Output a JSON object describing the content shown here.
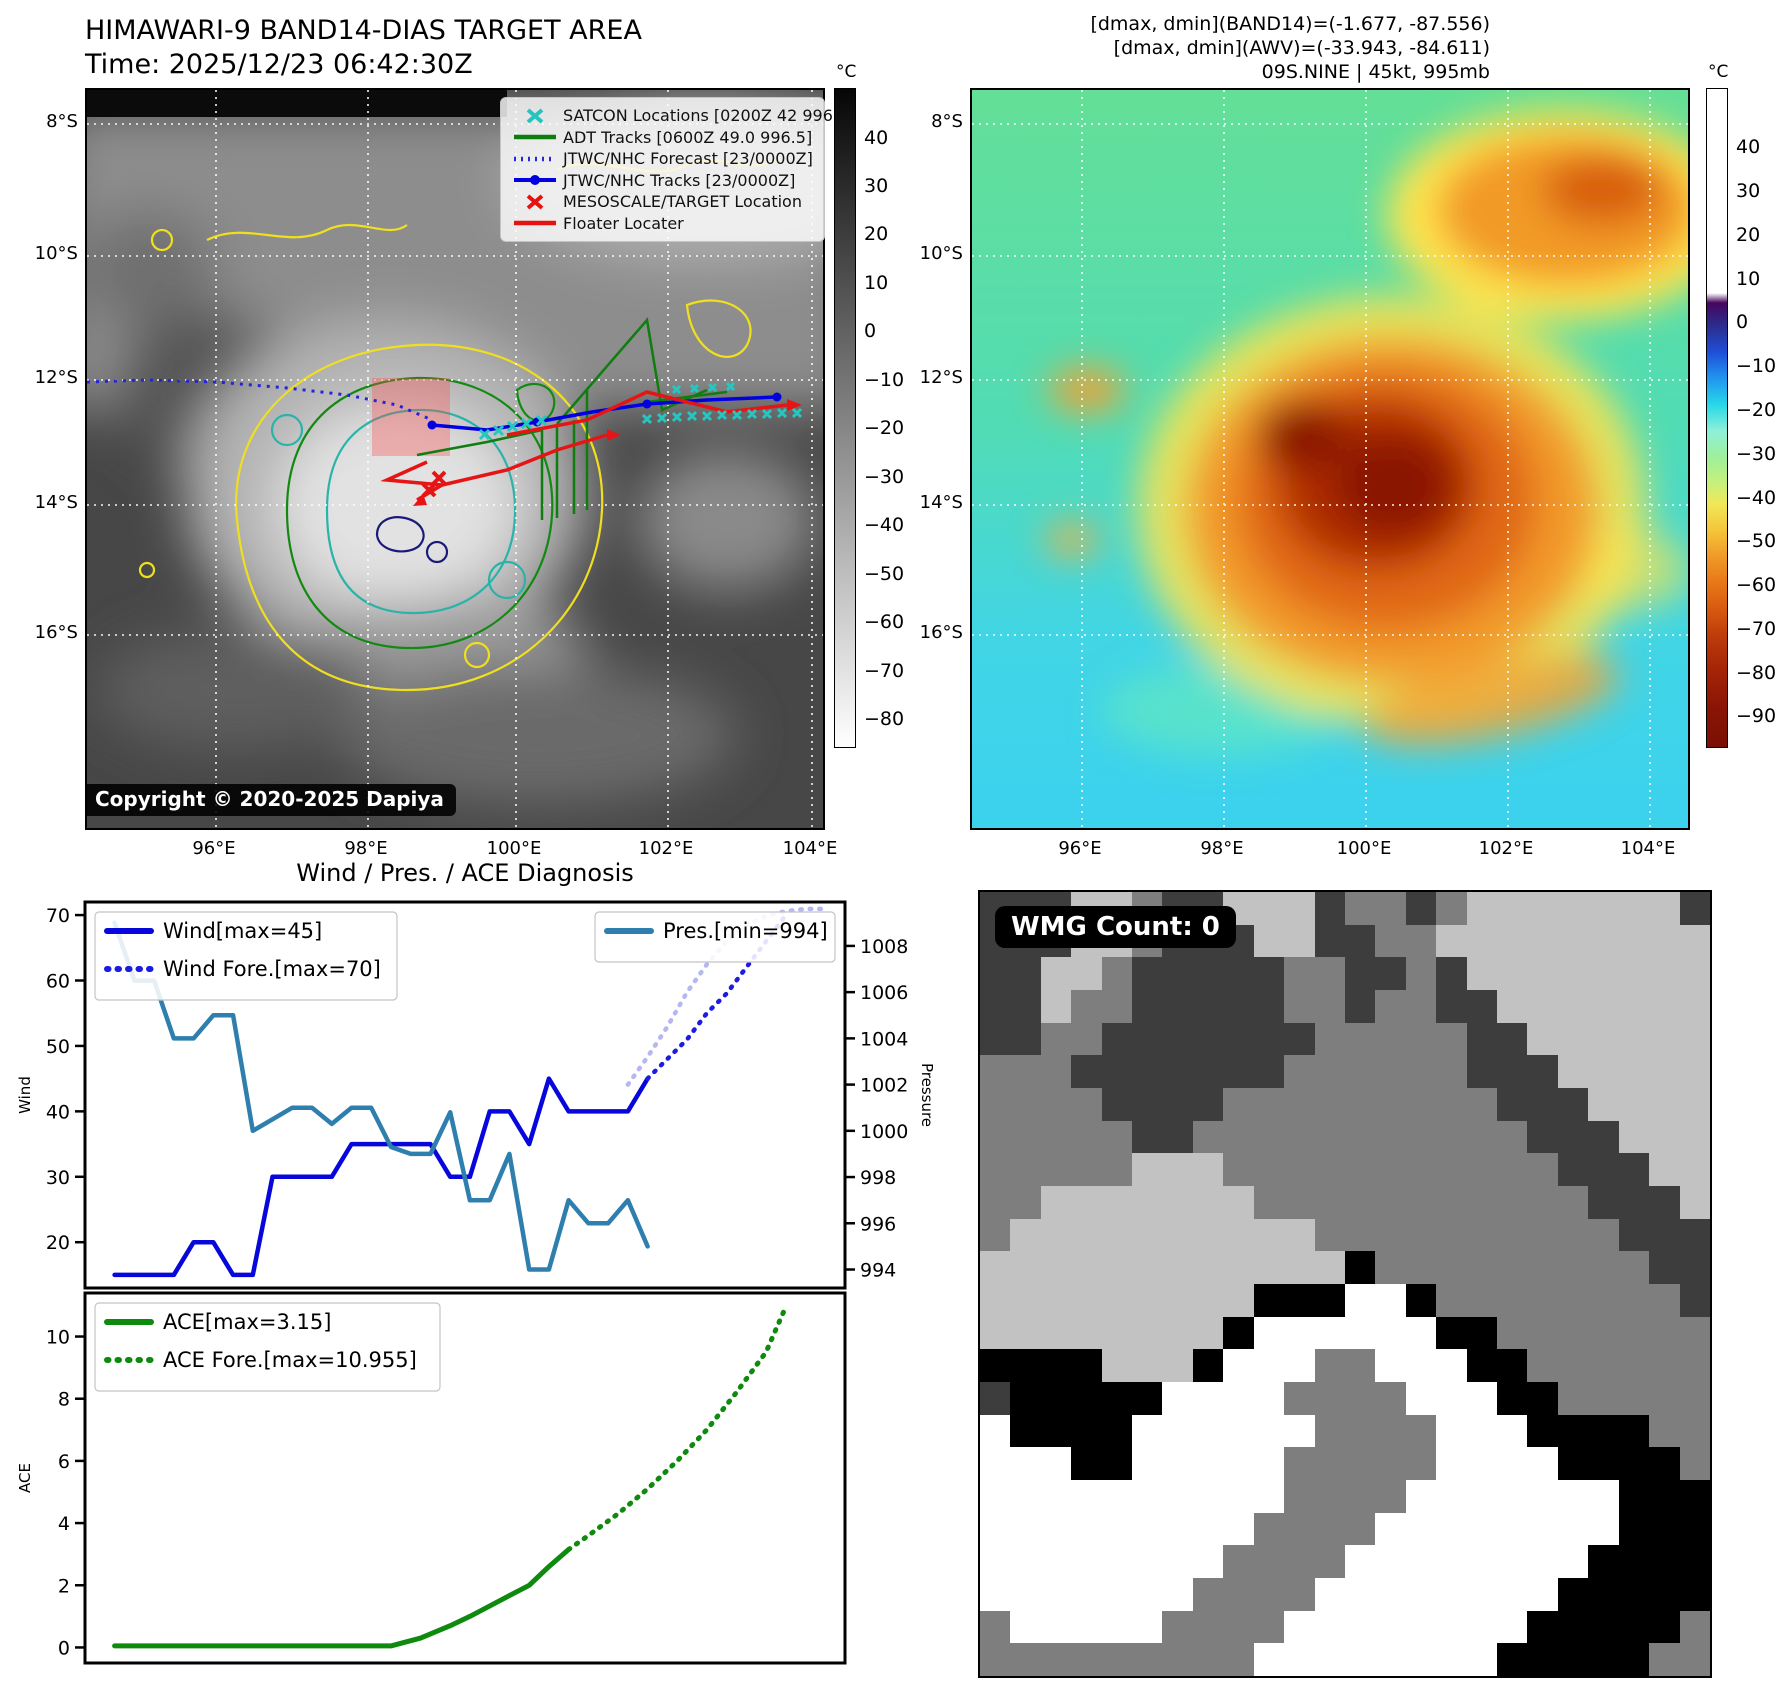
{
  "top_left": {
    "title": "HIMAWARI-9 BAND14-DIAS TARGET AREA",
    "subtitle": "Time: 2025/12/23 06:42:30Z",
    "copyright": "Copyright © 2020-2025 Dapiya",
    "colorbar_unit": "°C",
    "colorbar_ticks": [
      40,
      30,
      20,
      10,
      0,
      -10,
      -20,
      -30,
      -40,
      -50,
      -60,
      -70,
      -80
    ],
    "lat_ticks": [
      "8°S",
      "10°S",
      "12°S",
      "14°S",
      "16°S"
    ],
    "lon_ticks": [
      "96°E",
      "98°E",
      "100°E",
      "102°E",
      "104°E"
    ],
    "legend_items": [
      {
        "label": "SATCON Locations [0200Z 42 996]",
        "marker": "x",
        "color": "#26c4bc"
      },
      {
        "label": "ADT Tracks [0600Z 49.0 996.5]",
        "marker": "line",
        "color": "#0d7d0d"
      },
      {
        "label": "JTWC/NHC Forecast [23/0000Z]",
        "marker": "dotted",
        "color": "#2727dd"
      },
      {
        "label": "JTWC/NHC Tracks [23/0000Z]",
        "marker": "line-dot",
        "color": "#0000e0"
      },
      {
        "label": "MESOSCALE/TARGET Location",
        "marker": "x",
        "color": "#e61212"
      },
      {
        "label": "Floater Locater",
        "marker": "line",
        "color": "#e61212"
      }
    ]
  },
  "top_right": {
    "info_line1": "[dmax, dmin](BAND14)=(-1.677, -87.556)",
    "info_line2": "[dmax, dmin](AWV)=(-33.943, -84.611)",
    "info_line3": "09S.NINE | 45kt, 995mb",
    "colorbar_unit": "°C",
    "colorbar_ticks": [
      40,
      30,
      20,
      10,
      0,
      -10,
      -20,
      -30,
      -40,
      -50,
      -60,
      -70,
      -80,
      -90
    ],
    "lat_ticks": [
      "8°S",
      "10°S",
      "12°S",
      "14°S",
      "16°S"
    ],
    "lon_ticks": [
      "96°E",
      "98°E",
      "100°E",
      "102°E",
      "104°E"
    ]
  },
  "bottom_right": {
    "badge": "WMG Count: 0",
    "palette": {
      "0": "#000000",
      "1": "#3d3d3d",
      "2": "#7e7e7e",
      "3": "#c2c2c2",
      "4": "#ffffff"
    },
    "pixel_rows": [
      "111332113331221233333331",
      "111332111331122333333333",
      "113321111122112133333333",
      "113221111122122113333333",
      "112211111112222211333333",
      "222111111122222211133333",
      "222211112222222221113333",
      "222221122222222222111333",
      "222223332222222222211133",
      "223333333222222222221113",
      "233333333332222222222111",
      "333333333333022222222211",
      "333333333000440222222221",
      "333333330444444002222222",
      "000033304442244400222222",
      "100000444422224440022222",
      "400004444442222444000022",
      "444004444422222444400002",
      "444444444422224444444000",
      "444444444222244444444000",
      "444444442222444444440000",
      "444444422224444444400000",
      "244444222244444444000002",
      "222222222444444440000022"
    ]
  },
  "chart_data": [
    {
      "type": "line",
      "title": "Wind / Pres. / ACE Diagnosis",
      "xlim": [
        -1.5,
        37
      ],
      "grid": false,
      "legend_position": "upper left + upper right",
      "left_axis": {
        "label": "Wind",
        "ticks": [
          20,
          30,
          40,
          50,
          60,
          70
        ],
        "lim": [
          13,
          72
        ]
      },
      "right_axis": {
        "label": "Pressure",
        "ticks": [
          994,
          996,
          998,
          1000,
          1002,
          1004,
          1006,
          1008
        ],
        "lim": [
          993.2,
          1009.9
        ]
      },
      "series": [
        {
          "name": "Wind[max=45]",
          "axis": "left",
          "style": "solid",
          "color": "#0707dc",
          "x": [
            0,
            1,
            2,
            3,
            4,
            5,
            6,
            7,
            8,
            9,
            10,
            11,
            12,
            13,
            14,
            15,
            16,
            17,
            18,
            19,
            20,
            21,
            22,
            23,
            24,
            25,
            26,
            27
          ],
          "y": [
            15,
            15,
            15,
            15,
            20,
            20,
            15,
            15,
            30,
            30,
            30,
            30,
            35,
            35,
            35,
            35,
            35,
            30,
            30,
            40,
            40,
            35,
            45,
            40,
            40,
            40,
            40,
            45
          ]
        },
        {
          "name": "Wind Fore.[max=70]",
          "axis": "left",
          "style": "dotted",
          "color": "#1b1be4",
          "x": [
            27,
            28,
            29,
            30,
            31,
            32,
            33,
            34
          ],
          "y": [
            45,
            48,
            51,
            55,
            58,
            62,
            66,
            70
          ]
        },
        {
          "name": "Pres.[min=994]",
          "axis": "right",
          "style": "solid",
          "color": "#2e7fae",
          "x": [
            0,
            1,
            2,
            3,
            4,
            5,
            6,
            7,
            8,
            9,
            10,
            11,
            12,
            13,
            14,
            15,
            16,
            17,
            18,
            19,
            20,
            21,
            22,
            23,
            24,
            25,
            26,
            27
          ],
          "y": [
            1009,
            1006.5,
            1006.5,
            1004,
            1004,
            1005,
            1005,
            1000,
            1000.5,
            1001,
            1001,
            1000.3,
            1001,
            1001,
            999.3,
            999,
            999,
            1000.8,
            997,
            997,
            999,
            994,
            994,
            997,
            996,
            996,
            997,
            995
          ]
        },
        {
          "name": "Pres. Fore.",
          "axis": "right",
          "style": "dotted",
          "color": "#b6b6f2",
          "hide_legend": true,
          "x": [
            26,
            27,
            28,
            29,
            30,
            31,
            32,
            33,
            34,
            35,
            36
          ],
          "y": [
            1002,
            1003.2,
            1004.5,
            1006,
            1007.2,
            1008.2,
            1008.9,
            1009.3,
            1009.5,
            1009.6,
            1009.6
          ]
        }
      ]
    },
    {
      "type": "line",
      "title": "",
      "xlim": [
        -1.5,
        37
      ],
      "grid": false,
      "legend_position": "upper left",
      "left_axis": {
        "label": "ACE",
        "ticks": [
          0,
          2,
          4,
          6,
          8,
          10
        ],
        "lim": [
          -0.5,
          11.4
        ]
      },
      "series": [
        {
          "name": "ACE[max=3.15]",
          "axis": "left",
          "style": "solid",
          "color": "#0e8a0e",
          "x": [
            0,
            2,
            4,
            6,
            8,
            10,
            12,
            14,
            15.5,
            17,
            18,
            19.5,
            21,
            22,
            23
          ],
          "y": [
            0.05,
            0.05,
            0.05,
            0.05,
            0.05,
            0.05,
            0.05,
            0.05,
            0.3,
            0.7,
            1.0,
            1.5,
            2.0,
            2.6,
            3.15
          ]
        },
        {
          "name": "ACE Fore.[max=10.955]",
          "axis": "left",
          "style": "dotted",
          "color": "#0e8a0e",
          "x": [
            23,
            24,
            25.5,
            27,
            28.5,
            30,
            31.5,
            33,
            34
          ],
          "y": [
            3.15,
            3.6,
            4.3,
            5.1,
            6.0,
            7.0,
            8.2,
            9.5,
            10.955
          ]
        }
      ]
    }
  ]
}
